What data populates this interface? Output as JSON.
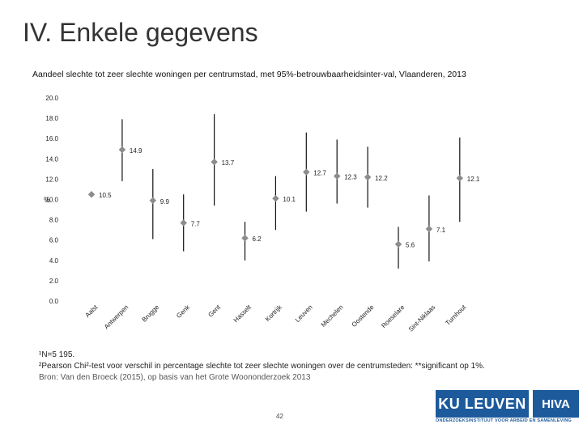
{
  "slide": {
    "title": "IV. Enkele gegevens",
    "page_number": "42"
  },
  "chart_data": {
    "type": "scatter",
    "title": "Aandeel slechte tot zeer slechte woningen per centrumstad, met 95%-betrouwbaarheidsinter-val, Vlaanderen, 2013",
    "ylabel": "%",
    "ylim": [
      0,
      20
    ],
    "yticks": [
      "0.0",
      "2.0",
      "4.0",
      "6.0",
      "8.0",
      "10.0",
      "12.0",
      "14.0",
      "16.0",
      "18.0",
      "20.0"
    ],
    "grid": false,
    "categories": [
      "Aalst",
      "Antwerpen",
      "Brugge",
      "Genk",
      "Gent",
      "Hasselt",
      "Kortrijk",
      "Leuven",
      "Mechelen",
      "Oostende",
      "Roeselare",
      "Sint-Niklaas",
      "Turnhout"
    ],
    "values": [
      10.5,
      14.9,
      9.9,
      7.7,
      13.7,
      6.2,
      10.1,
      12.7,
      12.3,
      12.2,
      5.6,
      7.1,
      12.1
    ],
    "value_labels": [
      "10.5",
      "14.9",
      "9.9",
      "7.7",
      "13.7",
      "6.2",
      "10.1",
      "12.7",
      "12.3",
      "12.2",
      "5.6",
      "7.1",
      "12.1"
    ],
    "ci_low": [
      10.5,
      11.8,
      6.1,
      4.9,
      9.4,
      4.0,
      7.0,
      8.8,
      9.6,
      9.2,
      3.2,
      3.9,
      7.8
    ],
    "ci_high": [
      10.5,
      17.9,
      13.0,
      10.5,
      18.4,
      7.8,
      12.3,
      16.6,
      15.9,
      15.2,
      7.3,
      10.4,
      16.1
    ],
    "marker_color": "#8c8c8c",
    "line_color": "#111111"
  },
  "notes": {
    "n_line": "¹N=5 195.",
    "test_line": "²Pearson Chi²-test voor verschil in percentage slechte tot zeer slechte woningen over de centrumsteden: **significant op 1%.",
    "source_line": "Bron: Van den Broeck (2015), op basis van het Grote Woononderzoek 2013"
  },
  "logos": {
    "ku": "KU LEUVEN",
    "hiva": "HIVA",
    "caption": "ONDERZOEKSINSTITUUT VOOR ARBEID EN SAMENLEVING"
  }
}
